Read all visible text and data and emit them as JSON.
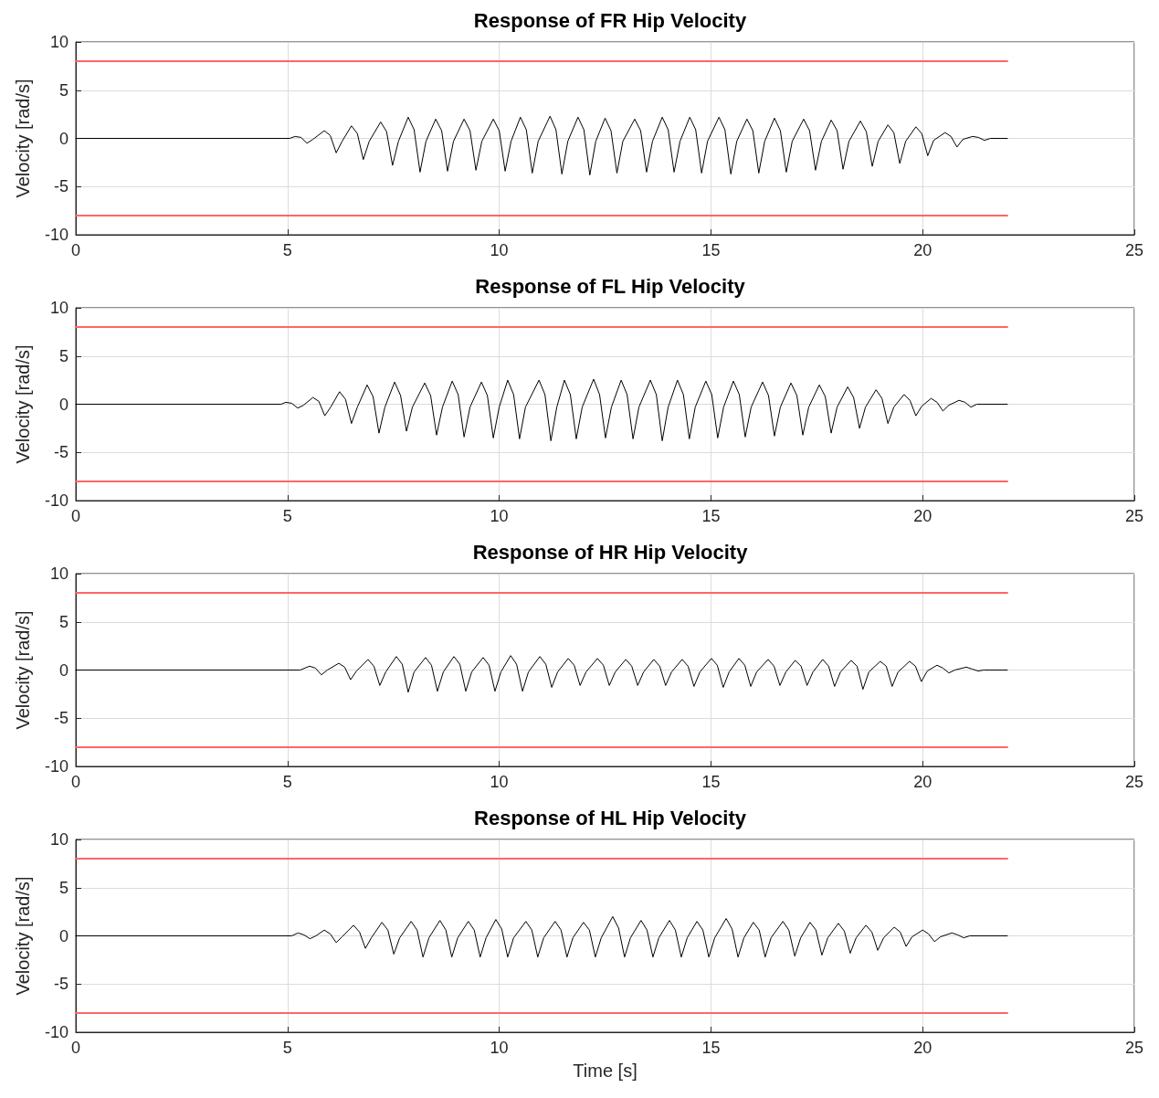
{
  "chart_data": [
    {
      "type": "line",
      "title": "Response of FR Hip Velocity",
      "ylabel": "Velocity [rad/s]",
      "xlim": [
        0,
        25
      ],
      "xticks": [
        0,
        5,
        10,
        15,
        20,
        25
      ],
      "ylim": [
        -10,
        10
      ],
      "yticks": [
        -10,
        -5,
        0,
        5,
        10
      ],
      "grid": true,
      "marker": "none",
      "line_style": "solid",
      "series": [
        {
          "color": "#ff6666",
          "x": [
            0,
            22
          ],
          "values": [
            8,
            8
          ]
        },
        {
          "color": "#ff6666",
          "x": [
            0,
            22
          ],
          "values": [
            -8,
            -8
          ]
        },
        {
          "color": "#000000",
          "x": [
            0,
            5.05,
            5.18,
            5.32,
            5.46,
            5.6,
            5.87,
            6.01,
            6.15,
            6.29,
            6.51,
            6.65,
            6.79,
            6.93,
            7.2,
            7.34,
            7.48,
            7.62,
            7.85,
            7.99,
            8.13,
            8.27,
            8.5,
            8.64,
            8.78,
            8.92,
            9.17,
            9.31,
            9.45,
            9.59,
            9.86,
            10.0,
            10.14,
            10.28,
            10.5,
            10.64,
            10.78,
            10.92,
            11.2,
            11.34,
            11.48,
            11.62,
            11.86,
            12.0,
            12.14,
            12.28,
            12.5,
            12.64,
            12.78,
            12.92,
            13.2,
            13.34,
            13.48,
            13.62,
            13.85,
            13.99,
            14.13,
            14.27,
            14.5,
            14.64,
            14.78,
            14.92,
            15.19,
            15.33,
            15.47,
            15.61,
            15.85,
            15.99,
            16.13,
            16.27,
            16.5,
            16.64,
            16.78,
            16.92,
            17.19,
            17.33,
            17.47,
            17.61,
            17.84,
            17.98,
            18.12,
            18.26,
            18.53,
            18.67,
            18.81,
            18.95,
            19.18,
            19.32,
            19.46,
            19.6,
            19.84,
            19.98,
            20.12,
            20.26,
            20.53,
            20.67,
            20.81,
            20.95,
            21.18,
            21.32,
            21.46,
            21.6,
            22
          ],
          "values": [
            0,
            0,
            0.2,
            0.1,
            -0.5,
            -0.1,
            0.8,
            0.3,
            -1.5,
            -0.3,
            1.3,
            0.5,
            -2.2,
            -0.3,
            1.7,
            0.7,
            -2.8,
            -0.3,
            2.2,
            0.9,
            -3.5,
            -0.3,
            2.0,
            0.8,
            -3.4,
            -0.3,
            2.0,
            0.8,
            -3.3,
            -0.3,
            2.0,
            0.8,
            -3.4,
            -0.3,
            2.2,
            0.9,
            -3.6,
            -0.3,
            2.3,
            0.9,
            -3.7,
            -0.3,
            2.2,
            0.9,
            -3.8,
            -0.3,
            2.1,
            0.8,
            -3.6,
            -0.3,
            2.0,
            0.8,
            -3.5,
            -0.3,
            2.2,
            0.9,
            -3.5,
            -0.3,
            2.2,
            0.9,
            -3.6,
            -0.3,
            2.2,
            0.9,
            -3.7,
            -0.3,
            2.0,
            0.8,
            -3.6,
            -0.3,
            2.1,
            0.8,
            -3.5,
            -0.3,
            2.0,
            0.8,
            -3.3,
            -0.3,
            1.9,
            0.8,
            -3.2,
            -0.3,
            1.8,
            0.7,
            -2.9,
            -0.3,
            1.4,
            0.6,
            -2.6,
            -0.3,
            1.2,
            0.5,
            -1.8,
            -0.2,
            0.6,
            0.2,
            -0.9,
            -0.1,
            0.2,
            0.1,
            -0.2,
            0,
            0
          ]
        }
      ]
    },
    {
      "type": "line",
      "title": "Response of FL Hip Velocity",
      "ylabel": "Velocity [rad/s]",
      "xlim": [
        0,
        25
      ],
      "xticks": [
        0,
        5,
        10,
        15,
        20,
        25
      ],
      "ylim": [
        -10,
        10
      ],
      "yticks": [
        -10,
        -5,
        0,
        5,
        10
      ],
      "grid": true,
      "marker": "none",
      "line_style": "solid",
      "series": [
        {
          "color": "#ff6666",
          "x": [
            0,
            22
          ],
          "values": [
            8,
            8
          ]
        },
        {
          "color": "#ff6666",
          "x": [
            0,
            22
          ],
          "values": [
            -8,
            -8
          ]
        },
        {
          "color": "#000000",
          "x": [
            0,
            4.85,
            4.96,
            5.1,
            5.24,
            5.38,
            5.6,
            5.74,
            5.88,
            6.02,
            6.23,
            6.37,
            6.51,
            6.65,
            6.88,
            7.02,
            7.16,
            7.3,
            7.53,
            7.67,
            7.81,
            7.95,
            8.24,
            8.38,
            8.52,
            8.66,
            8.89,
            9.03,
            9.17,
            9.31,
            9.58,
            9.72,
            9.86,
            10.0,
            10.2,
            10.34,
            10.48,
            10.62,
            10.94,
            11.08,
            11.22,
            11.36,
            11.54,
            11.68,
            11.82,
            11.96,
            12.23,
            12.37,
            12.51,
            12.65,
            12.88,
            13.02,
            13.16,
            13.3,
            13.57,
            13.71,
            13.85,
            13.99,
            14.21,
            14.35,
            14.49,
            14.63,
            14.88,
            15.02,
            15.16,
            15.3,
            15.53,
            15.67,
            15.81,
            15.95,
            16.22,
            16.36,
            16.5,
            16.64,
            16.89,
            17.03,
            17.17,
            17.31,
            17.56,
            17.7,
            17.84,
            17.98,
            18.23,
            18.37,
            18.51,
            18.65,
            18.9,
            19.04,
            19.18,
            19.32,
            19.56,
            19.7,
            19.84,
            19.98,
            20.2,
            20.34,
            20.48,
            20.62,
            20.86,
            21.0,
            21.14,
            21.28,
            22
          ],
          "values": [
            0,
            0,
            0.2,
            0.1,
            -0.4,
            -0.1,
            0.7,
            0.3,
            -1.2,
            -0.3,
            1.3,
            0.5,
            -2.0,
            -0.3,
            2.0,
            0.8,
            -3.0,
            -0.3,
            2.3,
            0.9,
            -2.8,
            -0.3,
            2.2,
            0.9,
            -3.2,
            -0.3,
            2.4,
            1.0,
            -3.4,
            -0.3,
            2.3,
            0.9,
            -3.5,
            -0.3,
            2.5,
            1.0,
            -3.6,
            -0.3,
            2.5,
            1.0,
            -3.8,
            -0.3,
            2.5,
            1.0,
            -3.6,
            -0.3,
            2.6,
            1.0,
            -3.5,
            -0.3,
            2.5,
            1.0,
            -3.6,
            -0.3,
            2.5,
            1.0,
            -3.8,
            -0.3,
            2.5,
            1.0,
            -3.6,
            -0.3,
            2.4,
            1.0,
            -3.5,
            -0.3,
            2.4,
            1.0,
            -3.4,
            -0.3,
            2.3,
            0.9,
            -3.3,
            -0.3,
            2.2,
            0.9,
            -3.2,
            -0.3,
            2.0,
            0.8,
            -3.0,
            -0.3,
            1.8,
            0.7,
            -2.5,
            -0.3,
            1.5,
            0.6,
            -2.0,
            -0.3,
            1.0,
            0.4,
            -1.2,
            -0.2,
            0.6,
            0.2,
            -0.7,
            -0.1,
            0.4,
            0.2,
            -0.3,
            0,
            0
          ]
        }
      ]
    },
    {
      "type": "line",
      "title": "Response of HR Hip Velocity",
      "ylabel": "Velocity [rad/s]",
      "xlim": [
        0,
        25
      ],
      "xticks": [
        0,
        5,
        10,
        15,
        20,
        25
      ],
      "ylim": [
        -10,
        10
      ],
      "yticks": [
        -10,
        -5,
        0,
        5,
        10
      ],
      "grid": true,
      "marker": "none",
      "line_style": "solid",
      "series": [
        {
          "color": "#ff6666",
          "x": [
            0,
            22
          ],
          "values": [
            8,
            8
          ]
        },
        {
          "color": "#ff6666",
          "x": [
            0,
            22
          ],
          "values": [
            -8,
            -8
          ]
        },
        {
          "color": "#000000",
          "x": [
            0,
            5.3,
            5.52,
            5.66,
            5.8,
            5.94,
            6.21,
            6.35,
            6.49,
            6.63,
            6.9,
            7.04,
            7.18,
            7.32,
            7.57,
            7.71,
            7.85,
            7.99,
            8.26,
            8.4,
            8.54,
            8.68,
            8.93,
            9.07,
            9.21,
            9.35,
            9.62,
            9.76,
            9.9,
            10.04,
            10.27,
            10.41,
            10.55,
            10.69,
            10.96,
            11.1,
            11.24,
            11.38,
            11.63,
            11.77,
            11.91,
            12.05,
            12.32,
            12.46,
            12.6,
            12.74,
            12.99,
            13.13,
            13.27,
            13.41,
            13.65,
            13.79,
            13.93,
            14.07,
            14.32,
            14.46,
            14.6,
            14.74,
            15.01,
            15.15,
            15.29,
            15.43,
            15.66,
            15.8,
            15.94,
            16.08,
            16.35,
            16.49,
            16.63,
            16.77,
            16.99,
            17.13,
            17.27,
            17.41,
            17.64,
            17.78,
            17.92,
            18.06,
            18.31,
            18.45,
            18.59,
            18.73,
            19.0,
            19.14,
            19.28,
            19.42,
            19.69,
            19.83,
            19.97,
            20.11,
            20.34,
            20.48,
            20.62,
            20.76,
            21.03,
            21.17,
            21.31,
            21.45,
            22
          ],
          "values": [
            0,
            0,
            0.4,
            0.2,
            -0.5,
            0,
            0.7,
            0.3,
            -1.0,
            -0.1,
            1.1,
            0.4,
            -1.6,
            -0.2,
            1.4,
            0.6,
            -2.3,
            -0.2,
            1.3,
            0.5,
            -2.2,
            -0.2,
            1.4,
            0.6,
            -2.2,
            -0.2,
            1.3,
            0.5,
            -2.2,
            -0.2,
            1.5,
            0.6,
            -2.2,
            -0.2,
            1.4,
            0.6,
            -1.8,
            -0.2,
            1.2,
            0.5,
            -1.6,
            -0.2,
            1.2,
            0.5,
            -1.6,
            -0.2,
            1.1,
            0.4,
            -1.6,
            -0.2,
            1.1,
            0.4,
            -1.6,
            -0.2,
            1.1,
            0.4,
            -1.7,
            -0.2,
            1.2,
            0.5,
            -1.8,
            -0.2,
            1.2,
            0.5,
            -1.7,
            -0.2,
            1.1,
            0.4,
            -1.6,
            -0.2,
            1.0,
            0.4,
            -1.6,
            -0.2,
            1.1,
            0.4,
            -1.7,
            -0.2,
            1.0,
            0.4,
            -2.0,
            -0.2,
            0.9,
            0.4,
            -1.7,
            -0.2,
            0.9,
            0.4,
            -1.2,
            -0.1,
            0.5,
            0.2,
            -0.3,
            0,
            0.3,
            0.1,
            -0.1,
            0,
            0
          ]
        }
      ]
    },
    {
      "type": "line",
      "title": "Response of HL Hip Velocity",
      "ylabel": "Velocity [rad/s]",
      "xlabel": "Time [s]",
      "xlim": [
        0,
        25
      ],
      "xticks": [
        0,
        5,
        10,
        15,
        20,
        25
      ],
      "ylim": [
        -10,
        10
      ],
      "yticks": [
        -10,
        -5,
        0,
        5,
        10
      ],
      "grid": true,
      "marker": "none",
      "line_style": "solid",
      "series": [
        {
          "color": "#ff6666",
          "x": [
            0,
            22
          ],
          "values": [
            8,
            8
          ]
        },
        {
          "color": "#ff6666",
          "x": [
            0,
            22
          ],
          "values": [
            -8,
            -8
          ]
        },
        {
          "color": "#000000",
          "x": [
            0,
            5.1,
            5.25,
            5.39,
            5.53,
            5.67,
            5.87,
            6.01,
            6.15,
            6.29,
            6.56,
            6.7,
            6.84,
            6.98,
            7.23,
            7.37,
            7.51,
            7.65,
            7.92,
            8.06,
            8.2,
            8.34,
            8.6,
            8.74,
            8.88,
            9.02,
            9.27,
            9.41,
            9.55,
            9.69,
            9.92,
            10.06,
            10.2,
            10.34,
            10.63,
            10.77,
            10.91,
            11.05,
            11.32,
            11.46,
            11.6,
            11.74,
            11.99,
            12.13,
            12.27,
            12.41,
            12.68,
            12.82,
            12.96,
            13.1,
            13.35,
            13.49,
            13.63,
            13.77,
            14.02,
            14.16,
            14.3,
            14.44,
            14.67,
            14.81,
            14.95,
            15.09,
            15.36,
            15.5,
            15.64,
            15.78,
            16.0,
            16.14,
            16.28,
            16.42,
            16.7,
            16.84,
            16.98,
            17.12,
            17.34,
            17.48,
            17.62,
            17.76,
            18.01,
            18.15,
            18.29,
            18.43,
            18.66,
            18.8,
            18.94,
            19.08,
            19.33,
            19.47,
            19.61,
            19.75,
            20.0,
            20.14,
            20.28,
            20.42,
            20.69,
            20.83,
            20.97,
            21.11,
            22
          ],
          "values": [
            0,
            0,
            0.3,
            0.1,
            -0.3,
            0,
            0.6,
            0.2,
            -0.7,
            -0.1,
            1.1,
            0.4,
            -1.3,
            -0.2,
            1.4,
            0.6,
            -1.9,
            -0.2,
            1.5,
            0.6,
            -2.2,
            -0.2,
            1.6,
            0.6,
            -2.2,
            -0.2,
            1.5,
            0.6,
            -2.2,
            -0.2,
            1.7,
            0.7,
            -2.2,
            -0.2,
            1.5,
            0.6,
            -2.2,
            -0.2,
            1.5,
            0.6,
            -2.2,
            -0.2,
            1.4,
            0.6,
            -2.2,
            -0.2,
            2.0,
            0.8,
            -2.2,
            -0.2,
            1.6,
            0.6,
            -2.2,
            -0.2,
            1.6,
            0.6,
            -2.2,
            -0.2,
            1.5,
            0.6,
            -2.2,
            -0.2,
            1.8,
            0.7,
            -2.2,
            -0.2,
            1.4,
            0.6,
            -2.2,
            -0.2,
            1.5,
            0.6,
            -2.1,
            -0.2,
            1.4,
            0.6,
            -2.0,
            -0.2,
            1.3,
            0.5,
            -1.8,
            -0.2,
            1.1,
            0.4,
            -1.5,
            -0.2,
            0.9,
            0.4,
            -1.1,
            -0.1,
            0.6,
            0.2,
            -0.6,
            -0.1,
            0.3,
            0.1,
            -0.2,
            0,
            0
          ]
        }
      ]
    }
  ]
}
